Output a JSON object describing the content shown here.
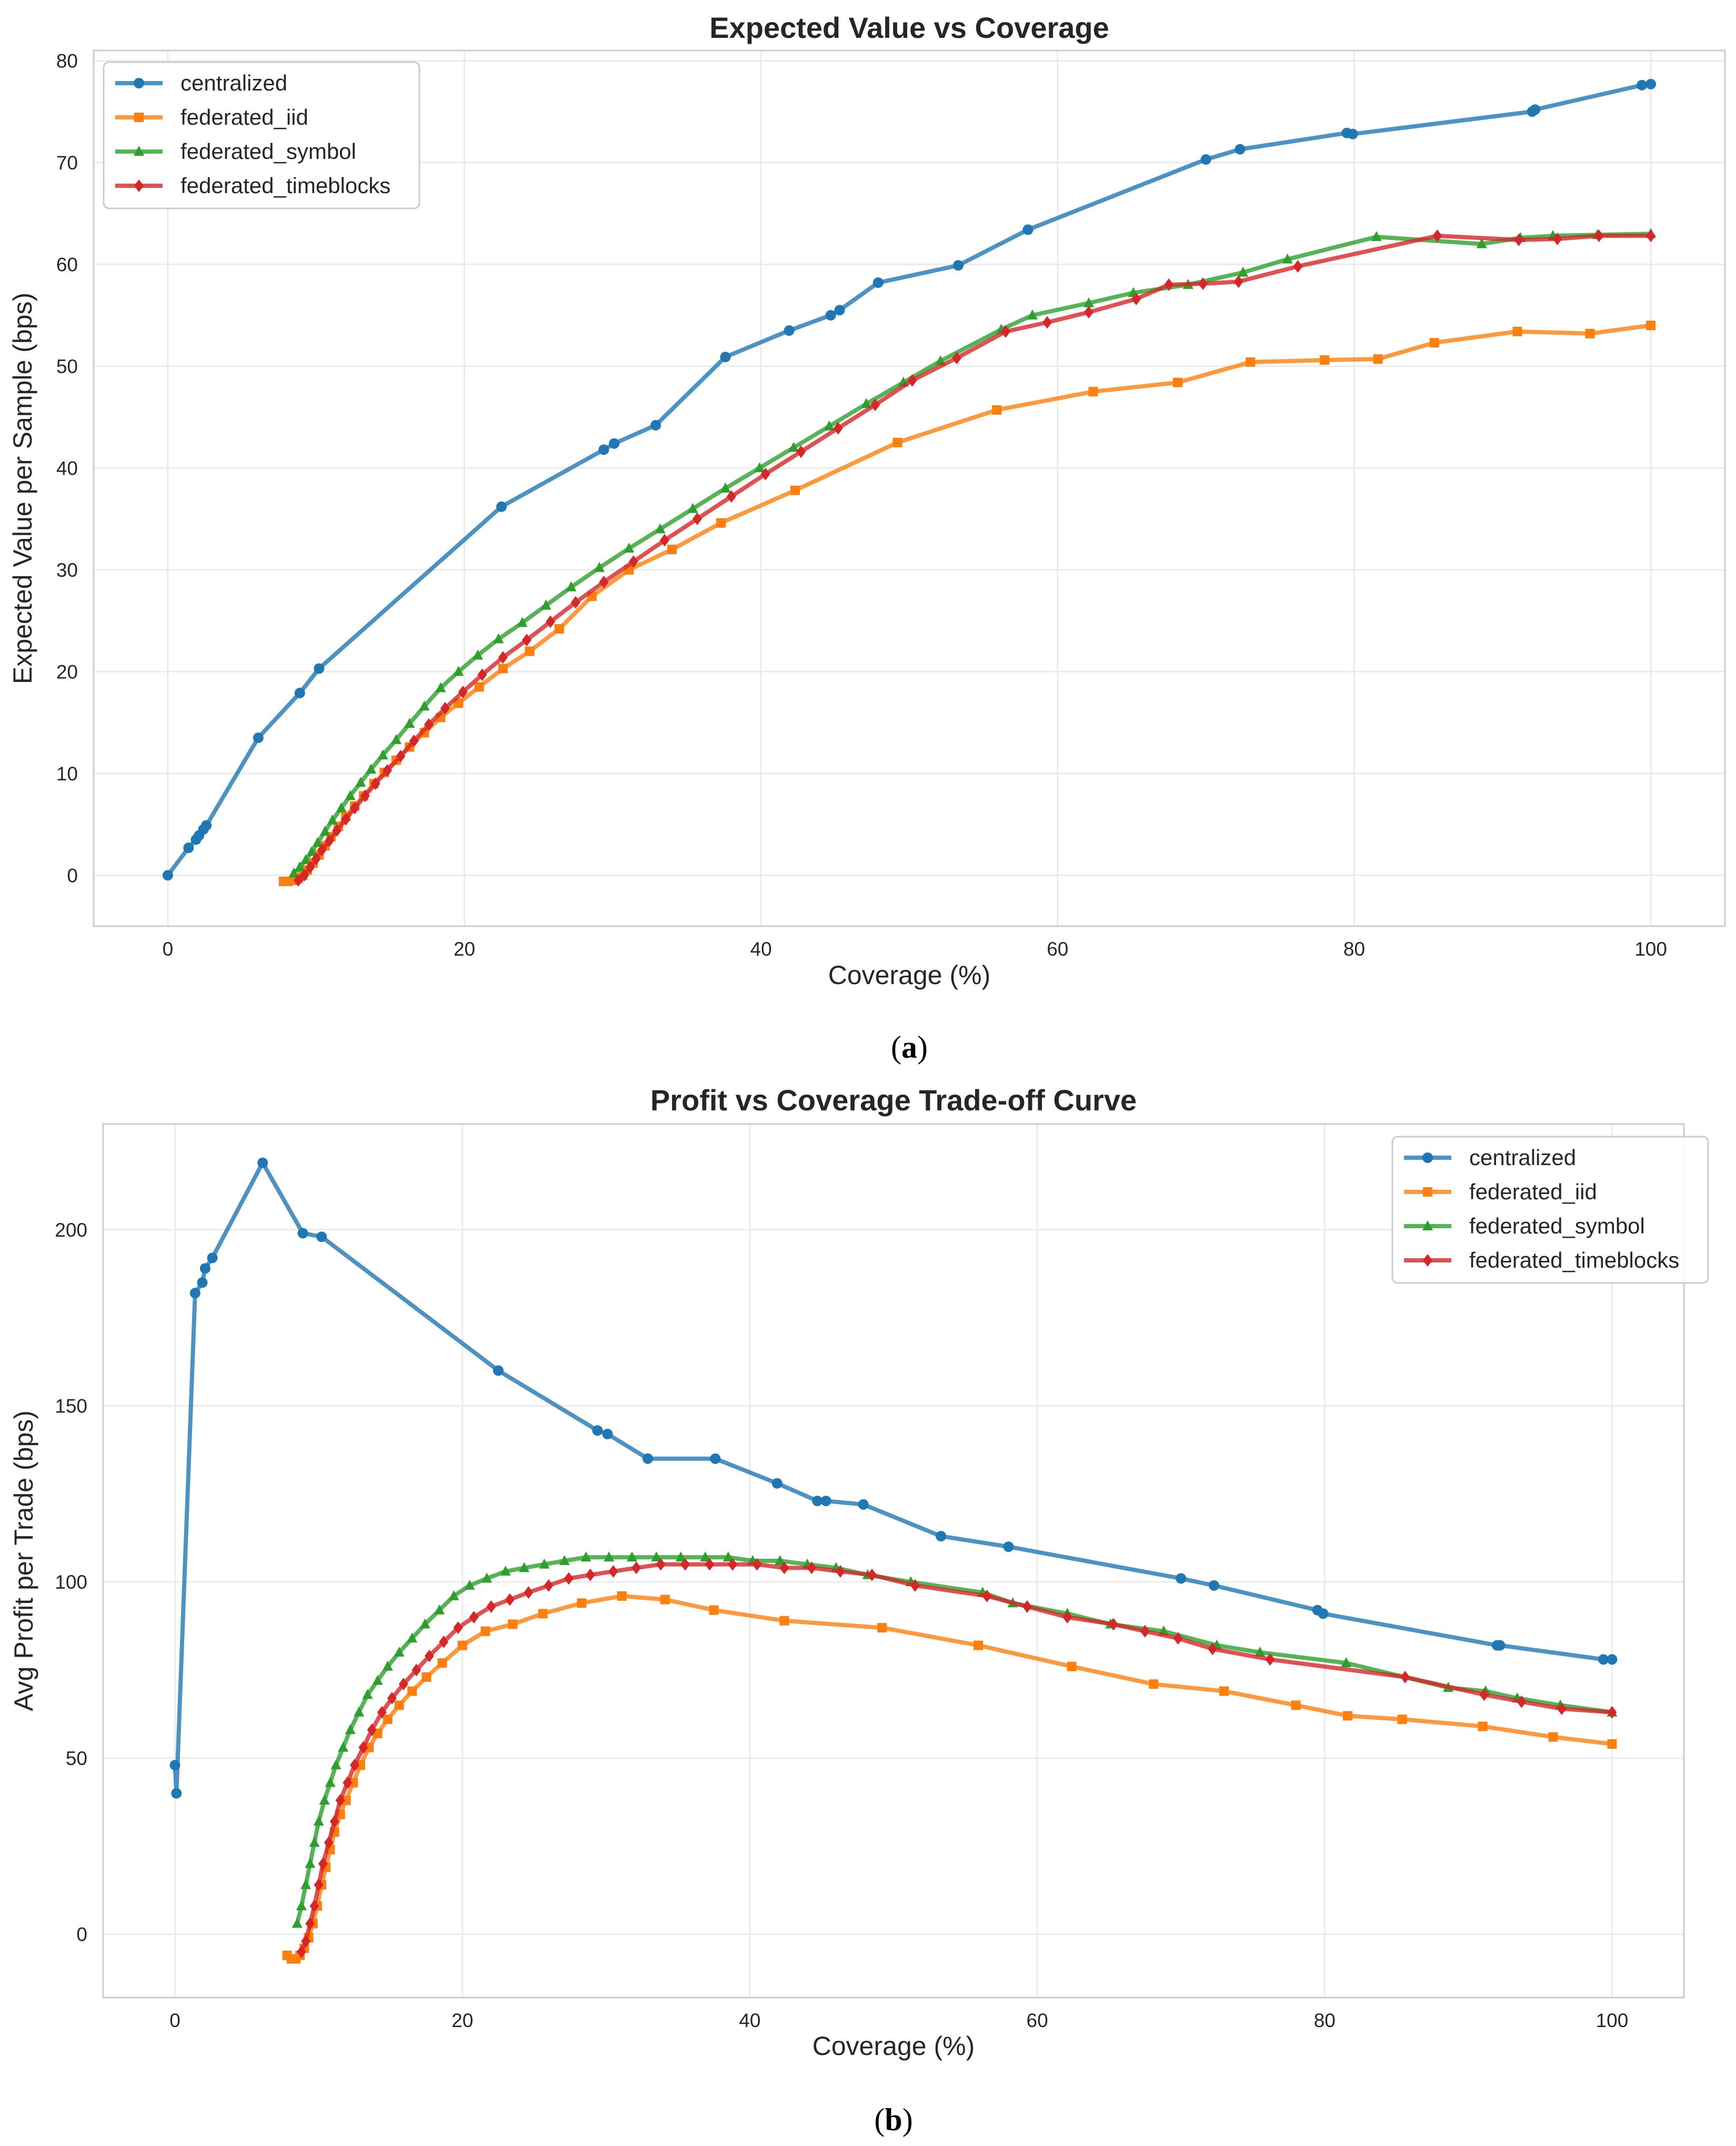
{
  "chart_data": [
    {
      "type": "line",
      "title": "Expected Value vs Coverage",
      "xlabel": "Coverage (%)",
      "ylabel": "Expected Value per Sample (bps)",
      "caption": "a",
      "xlim": [
        -5,
        105
      ],
      "ylim": [
        -5,
        81
      ],
      "xticks": [
        0,
        20,
        40,
        60,
        80,
        100
      ],
      "yticks": [
        0,
        10,
        20,
        30,
        40,
        50,
        60,
        70,
        80
      ],
      "grid": true,
      "legend_position": "top-left",
      "series": [
        {
          "name": "centralized",
          "color": "#1f77b4",
          "marker": "circle",
          "x": [
            0,
            1.4,
            1.9,
            2.1,
            2.4,
            2.6,
            6.1,
            8.9,
            10.2,
            22.5,
            29.4,
            30.1,
            32.9,
            37.6,
            41.9,
            44.7,
            45.3,
            47.9,
            53.3,
            58.0,
            70.0,
            72.3,
            79.5,
            79.9,
            92.0,
            92.2,
            99.4,
            100
          ],
          "y": [
            0,
            2.7,
            3.5,
            3.9,
            4.5,
            4.9,
            13.5,
            17.9,
            20.3,
            36.2,
            41.8,
            42.4,
            44.2,
            50.9,
            53.5,
            55.0,
            55.5,
            58.2,
            59.9,
            63.4,
            70.3,
            71.3,
            72.9,
            72.8,
            75.0,
            75.2,
            77.6,
            77.7
          ]
        },
        {
          "name": "federated_iid",
          "color": "#ff7f0e",
          "marker": "square",
          "x": [
            7.8,
            8.1,
            8.5,
            8.8,
            9.1,
            9.4,
            9.8,
            10.2,
            10.6,
            11.0,
            11.5,
            12.0,
            12.6,
            13.2,
            13.9,
            14.6,
            15.4,
            16.3,
            17.3,
            18.4,
            19.6,
            21.0,
            22.6,
            24.4,
            26.4,
            28.6,
            31.1,
            34.0,
            37.3,
            42.3,
            49.2,
            55.9,
            62.4,
            68.1,
            73.0,
            78.0,
            81.6,
            85.4,
            91.0,
            95.9,
            100
          ],
          "y": [
            -0.6,
            -0.6,
            -0.5,
            -0.3,
            0.0,
            0.5,
            1.2,
            2.0,
            2.9,
            3.8,
            4.8,
            5.8,
            6.8,
            7.8,
            9.0,
            10.1,
            11.3,
            12.6,
            14.0,
            15.5,
            16.9,
            18.5,
            20.3,
            22.0,
            24.2,
            27.4,
            30.0,
            32.0,
            34.6,
            37.8,
            42.5,
            45.7,
            47.5,
            48.4,
            50.4,
            50.6,
            50.7,
            52.3,
            53.4,
            53.2,
            54.0
          ]
        },
        {
          "name": "federated_symbol",
          "color": "#2ca02c",
          "marker": "triangle",
          "x": [
            8.5,
            8.9,
            9.3,
            9.7,
            10.1,
            10.6,
            11.1,
            11.7,
            12.3,
            13.0,
            13.7,
            14.5,
            15.4,
            16.3,
            17.3,
            18.4,
            19.6,
            20.9,
            22.3,
            23.9,
            25.5,
            27.2,
            29.1,
            31.1,
            33.2,
            35.4,
            37.6,
            39.9,
            42.2,
            44.6,
            47.1,
            49.6,
            52.1,
            56.2,
            58.3,
            62.1,
            65.1,
            68.8,
            72.5,
            75.5,
            81.5,
            88.6,
            91.2,
            93.4,
            96.4,
            100
          ],
          "y": [
            0.2,
            0.8,
            1.5,
            2.3,
            3.2,
            4.3,
            5.4,
            6.6,
            7.8,
            9.1,
            10.4,
            11.8,
            13.3,
            14.9,
            16.6,
            18.4,
            20.0,
            21.6,
            23.2,
            24.8,
            26.5,
            28.3,
            30.2,
            32.1,
            34.0,
            36.0,
            38.0,
            40.0,
            42.0,
            44.1,
            46.3,
            48.4,
            50.5,
            53.6,
            55.0,
            56.2,
            57.2,
            58.0,
            59.2,
            60.5,
            62.7,
            62.0,
            62.6,
            62.8,
            62.9,
            63.0
          ]
        },
        {
          "name": "federated_timeblocks",
          "color": "#d62728",
          "marker": "diamond",
          "x": [
            8.8,
            9.2,
            9.6,
            10.0,
            10.4,
            10.9,
            11.4,
            12.0,
            12.6,
            13.3,
            14.0,
            14.8,
            15.7,
            16.6,
            17.6,
            18.7,
            19.9,
            21.2,
            22.6,
            24.2,
            25.8,
            27.5,
            29.4,
            31.4,
            33.5,
            35.7,
            38.0,
            40.3,
            42.7,
            45.2,
            47.7,
            50.2,
            53.2,
            56.5,
            59.3,
            62.1,
            65.3,
            67.5,
            69.8,
            72.2,
            76.2,
            85.6,
            91.1,
            93.7,
            96.5,
            100
          ],
          "y": [
            -0.5,
            0.0,
            0.8,
            1.6,
            2.5,
            3.4,
            4.4,
            5.5,
            6.6,
            7.8,
            9.0,
            10.3,
            11.7,
            13.2,
            14.8,
            16.4,
            18.0,
            19.7,
            21.4,
            23.1,
            24.9,
            26.8,
            28.8,
            30.8,
            32.9,
            35.0,
            37.2,
            39.4,
            41.6,
            43.9,
            46.2,
            48.6,
            50.8,
            53.4,
            54.3,
            55.3,
            56.6,
            58.0,
            58.1,
            58.3,
            59.8,
            62.8,
            62.4,
            62.5,
            62.8,
            62.8
          ]
        }
      ]
    },
    {
      "type": "line",
      "title": "Profit vs Coverage Trade-off Curve",
      "xlabel": "Coverage (%)",
      "ylabel": "Avg Profit per Trade (bps)",
      "caption": "b",
      "xlim": [
        -5,
        105
      ],
      "ylim": [
        -18,
        230
      ],
      "xticks": [
        0,
        20,
        40,
        60,
        80,
        100
      ],
      "yticks": [
        0,
        50,
        100,
        150,
        200
      ],
      "grid": true,
      "legend_position": "top-right",
      "series": [
        {
          "name": "centralized",
          "color": "#1f77b4",
          "marker": "circle",
          "x": [
            0,
            0.1,
            1.4,
            1.9,
            2.1,
            2.6,
            6.1,
            8.9,
            10.2,
            22.5,
            29.4,
            30.1,
            32.9,
            37.6,
            41.9,
            44.7,
            45.3,
            47.9,
            53.3,
            58.0,
            70.0,
            72.3,
            79.5,
            79.9,
            92.0,
            92.2,
            99.4,
            100
          ],
          "y": [
            48,
            40,
            182,
            185,
            189,
            192,
            219,
            199,
            198,
            160,
            143,
            142,
            135,
            135,
            128,
            123,
            123,
            122,
            113,
            110,
            101,
            99,
            92,
            91,
            82,
            82,
            78,
            78
          ]
        },
        {
          "name": "federated_iid",
          "color": "#ff7f0e",
          "marker": "square",
          "x": [
            7.8,
            8.1,
            8.4,
            8.7,
            9.0,
            9.3,
            9.6,
            9.9,
            10.2,
            10.5,
            10.8,
            11.1,
            11.5,
            11.9,
            12.4,
            12.9,
            13.5,
            14.1,
            14.8,
            15.6,
            16.5,
            17.5,
            18.6,
            20.0,
            21.6,
            23.5,
            25.6,
            28.3,
            31.1,
            34.1,
            37.5,
            42.4,
            49.2,
            55.9,
            62.4,
            68.1,
            73.0,
            78.0,
            81.6,
            85.4,
            91.0,
            95.9,
            100
          ],
          "y": [
            -6,
            -7,
            -7,
            -6,
            -4,
            -1,
            3,
            8,
            14,
            19,
            24,
            29,
            34,
            38,
            43,
            48,
            53,
            57,
            61,
            65,
            69,
            73,
            77,
            82,
            86,
            88,
            91,
            94,
            96,
            95,
            92,
            89,
            87,
            82,
            76,
            71,
            69,
            65,
            62,
            61,
            59,
            56,
            54
          ]
        },
        {
          "name": "federated_symbol",
          "color": "#2ca02c",
          "marker": "triangle",
          "x": [
            8.5,
            8.8,
            9.1,
            9.4,
            9.7,
            10.0,
            10.4,
            10.8,
            11.2,
            11.7,
            12.2,
            12.8,
            13.4,
            14.1,
            14.8,
            15.6,
            16.5,
            17.4,
            18.4,
            19.4,
            20.5,
            21.7,
            23.0,
            24.3,
            25.7,
            27.1,
            28.6,
            30.2,
            31.8,
            33.5,
            35.2,
            36.9,
            38.5,
            40.2,
            42.1,
            44.0,
            46.0,
            48.2,
            51.2,
            56.2,
            58.3,
            62.1,
            65.1,
            68.8,
            72.5,
            75.5,
            81.5,
            88.6,
            91.2,
            93.4,
            96.4,
            100
          ],
          "y": [
            3,
            8,
            14,
            20,
            26,
            32,
            38,
            43,
            48,
            53,
            58,
            63,
            68,
            72,
            76,
            80,
            84,
            88,
            92,
            96,
            99,
            101,
            103,
            104,
            105,
            106,
            107,
            107,
            107,
            107,
            107,
            107,
            107,
            106,
            106,
            105,
            104,
            102,
            100,
            97,
            94,
            91,
            88,
            86,
            82,
            80,
            77,
            70,
            69,
            67,
            65,
            63
          ]
        },
        {
          "name": "federated_timeblocks",
          "color": "#d62728",
          "marker": "diamond",
          "x": [
            8.8,
            9.1,
            9.4,
            9.7,
            10.0,
            10.3,
            10.7,
            11.1,
            11.5,
            12.0,
            12.5,
            13.1,
            13.7,
            14.4,
            15.1,
            15.9,
            16.8,
            17.7,
            18.7,
            19.7,
            20.8,
            22.0,
            23.3,
            24.6,
            26.0,
            27.4,
            28.9,
            30.5,
            32.1,
            33.8,
            35.5,
            37.2,
            38.8,
            40.5,
            42.4,
            44.3,
            46.3,
            48.5,
            51.5,
            56.5,
            59.3,
            62.1,
            65.3,
            67.5,
            69.8,
            72.2,
            76.2,
            85.6,
            91.1,
            93.7,
            96.5,
            100
          ],
          "y": [
            -5,
            -2,
            3,
            8,
            14,
            20,
            26,
            32,
            38,
            43,
            48,
            53,
            58,
            63,
            67,
            71,
            75,
            79,
            83,
            87,
            90,
            93,
            95,
            97,
            99,
            101,
            102,
            103,
            104,
            105,
            105,
            105,
            105,
            105,
            104,
            104,
            103,
            102,
            99,
            96,
            93,
            90,
            88,
            86,
            84,
            81,
            78,
            73,
            68,
            66,
            64,
            63
          ]
        }
      ]
    }
  ]
}
